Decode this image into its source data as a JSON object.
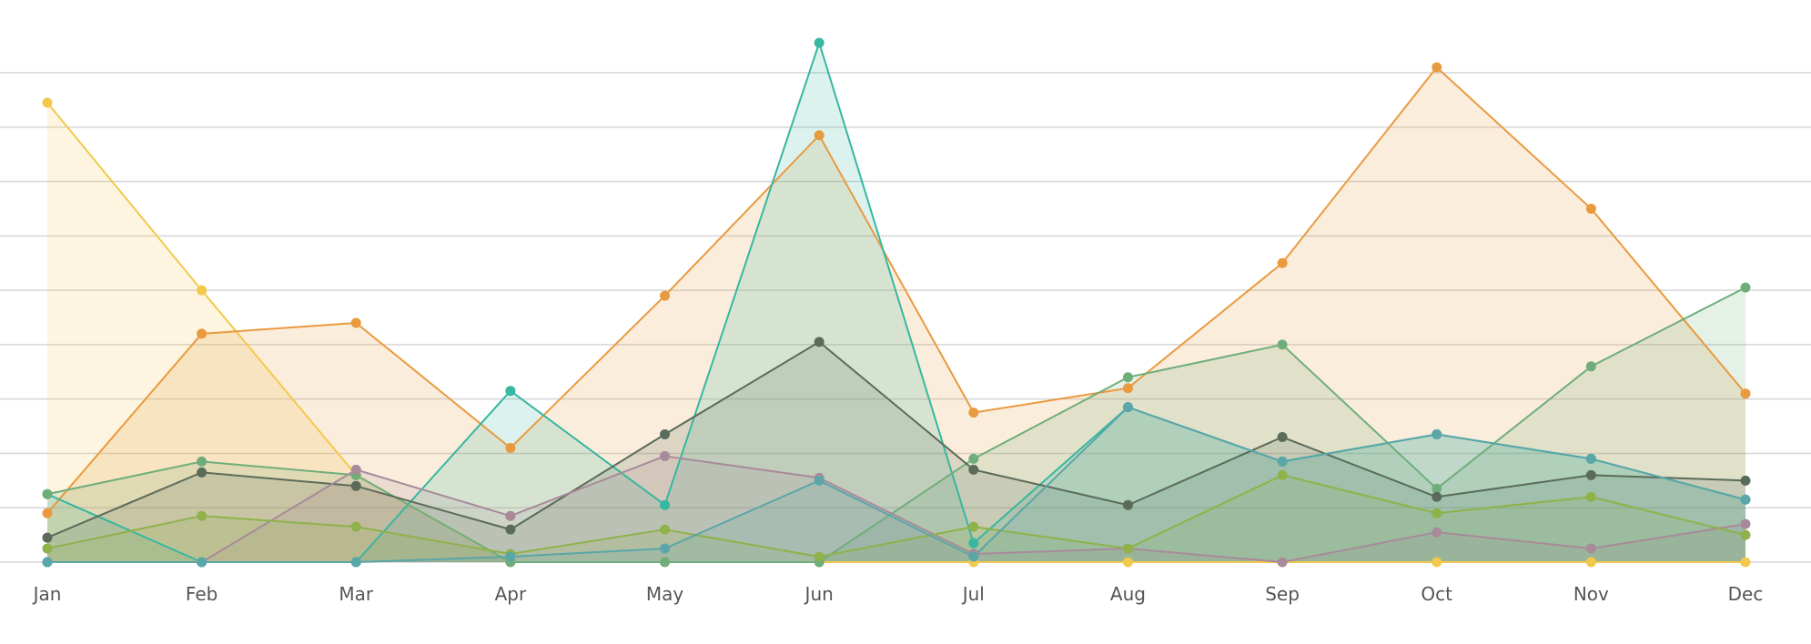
{
  "chart_data": {
    "type": "area",
    "categories": [
      "Jan",
      "Feb",
      "Mar",
      "Apr",
      "May",
      "Jun",
      "Jul",
      "Aug",
      "Sep",
      "Oct",
      "Nov",
      "Dec"
    ],
    "ylim": [
      0,
      9
    ],
    "grid": true,
    "yticks": [
      0,
      1,
      2,
      3,
      4,
      5,
      6,
      7,
      8,
      9
    ],
    "series": [
      {
        "color": "#f2c94c",
        "values": [
          8.45,
          5.0,
          1.6,
          0.0,
          0.0,
          0.0,
          0.0,
          0.0,
          0.0,
          0.0,
          0.0,
          0.0
        ]
      },
      {
        "color": "#e99a3f",
        "values": [
          0.9,
          4.2,
          4.4,
          2.1,
          4.9,
          7.85,
          2.75,
          3.2,
          5.5,
          9.1,
          6.5,
          3.1
        ]
      },
      {
        "color": "#36b7a0",
        "values": [
          1.25,
          0.0,
          0.0,
          3.15,
          1.05,
          9.55,
          0.35,
          2.85,
          1.85,
          2.35,
          1.9,
          1.15
        ]
      },
      {
        "color": "#6fae7a",
        "values": [
          1.25,
          1.85,
          1.6,
          0.0,
          0.0,
          0.0,
          1.9,
          3.4,
          4.0,
          1.35,
          3.6,
          5.05
        ]
      },
      {
        "color": "#5b6b5a",
        "values": [
          0.45,
          1.65,
          1.4,
          0.6,
          2.35,
          4.05,
          1.7,
          1.05,
          2.3,
          1.2,
          1.6,
          1.5
        ]
      },
      {
        "color": "#a88a9a",
        "values": [
          0.0,
          0.0,
          1.7,
          0.85,
          1.95,
          1.55,
          0.15,
          0.25,
          0.0,
          0.55,
          0.25,
          0.7
        ]
      },
      {
        "color": "#8fb24a",
        "values": [
          0.25,
          0.85,
          0.65,
          0.15,
          0.6,
          0.1,
          0.65,
          0.25,
          1.6,
          0.9,
          1.2,
          0.5
        ]
      },
      {
        "color": "#5aa6a8",
        "values": [
          0.0,
          0.0,
          0.0,
          0.1,
          0.25,
          1.5,
          0.1,
          2.85,
          1.85,
          2.35,
          1.9,
          1.15
        ]
      }
    ]
  }
}
